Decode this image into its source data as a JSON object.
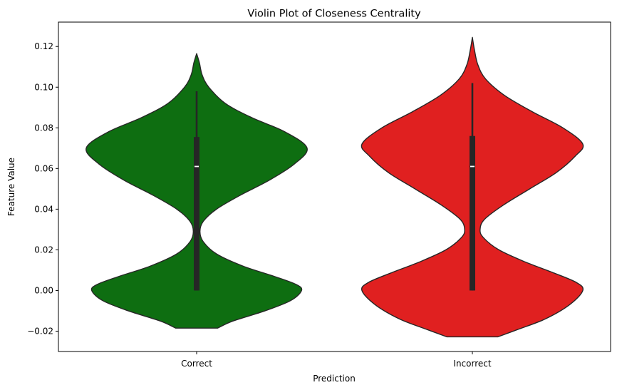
{
  "chart_data": {
    "type": "violin",
    "title": "Violin Plot of Closeness Centrality",
    "xlabel": "Prediction",
    "ylabel": "Feature Value",
    "ylim": [
      -0.03,
      0.132
    ],
    "yticks": [
      -0.02,
      0.0,
      0.02,
      0.04,
      0.06,
      0.08,
      0.1,
      0.12
    ],
    "ytick_labels": [
      "−0.02",
      "0.00",
      "0.02",
      "0.04",
      "0.06",
      "0.08",
      "0.10",
      "0.12"
    ],
    "grid": false,
    "categories": [
      "Correct",
      "Incorrect"
    ],
    "series": [
      {
        "category": "Correct",
        "color": "#0e6e11",
        "edge_color": "#262626",
        "violin_min": -0.0185,
        "violin_max": 0.1165,
        "whisker_low": 0.0,
        "q1": 0.0,
        "median": 0.061,
        "q3": 0.0755,
        "whisker_high": 0.098,
        "density_profile": [
          [
            -0.0185,
            0.19
          ],
          [
            -0.015,
            0.33
          ],
          [
            -0.01,
            0.62
          ],
          [
            -0.005,
            0.85
          ],
          [
            0.0,
            0.95
          ],
          [
            0.003,
            0.9
          ],
          [
            0.007,
            0.7
          ],
          [
            0.012,
            0.42
          ],
          [
            0.018,
            0.18
          ],
          [
            0.024,
            0.06
          ],
          [
            0.029,
            0.03
          ],
          [
            0.034,
            0.06
          ],
          [
            0.04,
            0.18
          ],
          [
            0.047,
            0.4
          ],
          [
            0.054,
            0.65
          ],
          [
            0.062,
            0.88
          ],
          [
            0.07,
            1.0
          ],
          [
            0.078,
            0.8
          ],
          [
            0.085,
            0.5
          ],
          [
            0.092,
            0.26
          ],
          [
            0.1,
            0.11
          ],
          [
            0.106,
            0.05
          ],
          [
            0.112,
            0.025
          ],
          [
            0.1165,
            0.0
          ]
        ]
      },
      {
        "category": "Incorrect",
        "color": "#e02020",
        "edge_color": "#262626",
        "violin_min": -0.0228,
        "violin_max": 0.1245,
        "whisker_low": 0.0,
        "q1": 0.0,
        "median": 0.061,
        "q3": 0.076,
        "whisker_high": 0.102,
        "density_profile": [
          [
            -0.0228,
            0.23
          ],
          [
            -0.019,
            0.42
          ],
          [
            -0.014,
            0.66
          ],
          [
            -0.007,
            0.88
          ],
          [
            0.0,
            1.0
          ],
          [
            0.004,
            0.94
          ],
          [
            0.009,
            0.72
          ],
          [
            0.014,
            0.48
          ],
          [
            0.02,
            0.24
          ],
          [
            0.026,
            0.1
          ],
          [
            0.03,
            0.07
          ],
          [
            0.035,
            0.11
          ],
          [
            0.042,
            0.28
          ],
          [
            0.05,
            0.52
          ],
          [
            0.058,
            0.76
          ],
          [
            0.066,
            0.93
          ],
          [
            0.072,
            1.0
          ],
          [
            0.08,
            0.82
          ],
          [
            0.088,
            0.54
          ],
          [
            0.096,
            0.29
          ],
          [
            0.104,
            0.12
          ],
          [
            0.111,
            0.05
          ],
          [
            0.118,
            0.02
          ],
          [
            0.1245,
            0.0
          ]
        ]
      }
    ]
  }
}
